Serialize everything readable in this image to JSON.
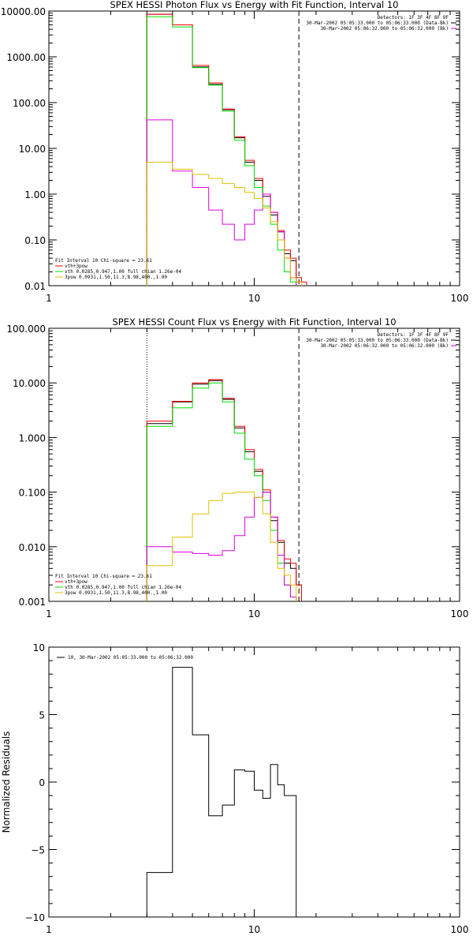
{
  "chart_data": [
    {
      "type": "line",
      "title": "SPEX HESSI Photon Flux vs Energy with Fit Function, Interval 10",
      "xscale": "log",
      "yscale": "log",
      "xlim": [
        1,
        100
      ],
      "ylim": [
        0.01,
        10000
      ],
      "xtick_labels": [
        "1",
        "10",
        "100"
      ],
      "ytick_labels": [
        "0.01",
        "0.10",
        "1.00",
        "10.00",
        "100.00",
        "1000.00",
        "10000.00"
      ],
      "ytick_values": [
        0.01,
        0.1,
        1,
        10,
        100,
        1000,
        10000
      ],
      "legend_top_right": [
        "Detectors: 1F 3F 4F 8F 9F",
        "30-Mar-2002 05:05:33.000 to 05:06:33.000 (Data-Bk)",
        "30-Mar-2002 05:06:32.000 to 05:06:32.000 (Bk)"
      ],
      "legend_bottom_left": [
        "Fit Interval 10   Chi-square = 23.61",
        "vth+3pow",
        "vth 0.0285,0.947,1.00  full chian 1.26e-04",
        "3pow 0.0931,1.50,11.3,8.98,400.,1.00"
      ],
      "vlines": [
        {
          "x": 3.0,
          "style": "dotted",
          "color": "#000000"
        },
        {
          "x": 16.5,
          "style": "dashed",
          "color": "#000000"
        }
      ],
      "edges": [
        3,
        4,
        5,
        6,
        7,
        8,
        9,
        10,
        11,
        12,
        13,
        14,
        15,
        16,
        17,
        18,
        19
      ],
      "series": [
        {
          "color": "#000000",
          "values": [
            8500,
            5000,
            600,
            250,
            70,
            17,
            5,
            2,
            0.9,
            0.35,
            0.15,
            0.05,
            0.035,
            0.012
          ]
        },
        {
          "color": "#ff0000",
          "values": [
            8500,
            5000,
            650,
            270,
            72,
            18,
            5.5,
            2.2,
            1.0,
            0.4,
            0.16,
            0.06,
            0.04,
            0.015,
            0.012
          ]
        },
        {
          "color": "#00e000",
          "values": [
            7500,
            4500,
            580,
            240,
            65,
            15,
            4.2,
            1.4,
            0.55,
            0.22,
            0.06,
            0.02,
            0.012
          ]
        },
        {
          "color": "#e000e0",
          "values": [
            42,
            3.2,
            1.4,
            0.45,
            0.22,
            0.1,
            0.22,
            0.45,
            1.0,
            0.4,
            0.15,
            0.04,
            0.015
          ]
        },
        {
          "color": "#e0c000",
          "values": [
            5,
            3.5,
            2.7,
            2.2,
            1.7,
            1.4,
            1.1,
            0.8,
            0.5,
            0.25,
            0.1,
            0.04,
            0.015,
            0.012
          ]
        }
      ]
    },
    {
      "type": "line",
      "title": "SPEX HESSI Count Flux vs Energy with Fit Function, Interval 10",
      "xscale": "log",
      "yscale": "log",
      "xlim": [
        1,
        100
      ],
      "ylim": [
        0.001,
        100
      ],
      "xtick_labels": [
        "1",
        "10",
        "100"
      ],
      "ytick_labels": [
        "0.001",
        "0.010",
        "0.100",
        "1.000",
        "10.000",
        "100.000"
      ],
      "ytick_values": [
        0.001,
        0.01,
        0.1,
        1,
        10,
        100
      ],
      "legend_top_right": [
        "Detectors: 1F 3F 4F 8F 9F",
        "30-Mar-2002 05:05:33.000 to 05:06:33.000 (Data-Bk)",
        "30-Mar-2002 05:06:32.000 to 05:06:32.000 (Bk)"
      ],
      "legend_bottom_left": [
        "Fit Interval 10   Chi-square = 23.61",
        "vth+3pow",
        "vth 0.0285,0.947,1.00  full chian 1.26e-04",
        "3pow 0.0931,1.50,11.3,8.98,400.,1.00"
      ],
      "vlines": [
        {
          "x": 3.0,
          "style": "dotted",
          "color": "#000000"
        },
        {
          "x": 16.5,
          "style": "dashed",
          "color": "#000000"
        }
      ],
      "edges": [
        3,
        4,
        5,
        6,
        7,
        8,
        9,
        10,
        11,
        12,
        13,
        14,
        15,
        16,
        17,
        18,
        19
      ],
      "series": [
        {
          "color": "#000000",
          "values": [
            1.8,
            4.5,
            9.5,
            11,
            5,
            1.5,
            0.55,
            0.24,
            0.1,
            0.03,
            0.012,
            0.005,
            0.004,
            0.002
          ]
        },
        {
          "color": "#ff0000",
          "values": [
            2.0,
            4.6,
            10,
            11.5,
            5.2,
            1.6,
            0.6,
            0.26,
            0.11,
            0.035,
            0.013,
            0.006,
            0.005,
            0.002
          ]
        },
        {
          "color": "#00e000",
          "values": [
            1.6,
            3.5,
            8.0,
            10,
            4.5,
            1.2,
            0.4,
            0.2,
            0.07,
            0.02,
            0.005,
            0.002,
            0.0012
          ]
        },
        {
          "color": "#e000e0",
          "values": [
            0.01,
            0.008,
            0.0075,
            0.007,
            0.0085,
            0.016,
            0.035,
            0.08,
            0.1,
            0.035,
            0.007,
            0.002,
            0.0012
          ]
        },
        {
          "color": "#e0c000",
          "values": [
            0.0045,
            0.015,
            0.04,
            0.07,
            0.095,
            0.1,
            0.1,
            0.08,
            0.04,
            0.012,
            0.004,
            0.003,
            0.002
          ]
        }
      ]
    },
    {
      "type": "line",
      "title": "",
      "ylabel": "Normalized Residuals",
      "xscale": "log",
      "yscale": "linear",
      "xlim": [
        1,
        100
      ],
      "ylim": [
        -10,
        10
      ],
      "xtick_labels": [
        "1",
        "10",
        "100"
      ],
      "ytick_labels": [
        "10",
        "5",
        "0",
        "−5",
        "−10"
      ],
      "ytick_values": [
        10,
        5,
        0,
        -5,
        -10
      ],
      "legend_top_left": "10, 30-Mar-2002 05:05:33.000 to 05:06:32.000",
      "edges": [
        3,
        4,
        5,
        6,
        7,
        8,
        9,
        10,
        11,
        12,
        13,
        14,
        15,
        16,
        17
      ],
      "series": [
        {
          "color": "#000000",
          "values": [
            -6.7,
            8.5,
            3.5,
            -2.5,
            -1.7,
            0.9,
            0.8,
            -0.6,
            -1.2,
            1.3,
            -0.2,
            -1.0,
            -1.0
          ]
        }
      ]
    }
  ]
}
